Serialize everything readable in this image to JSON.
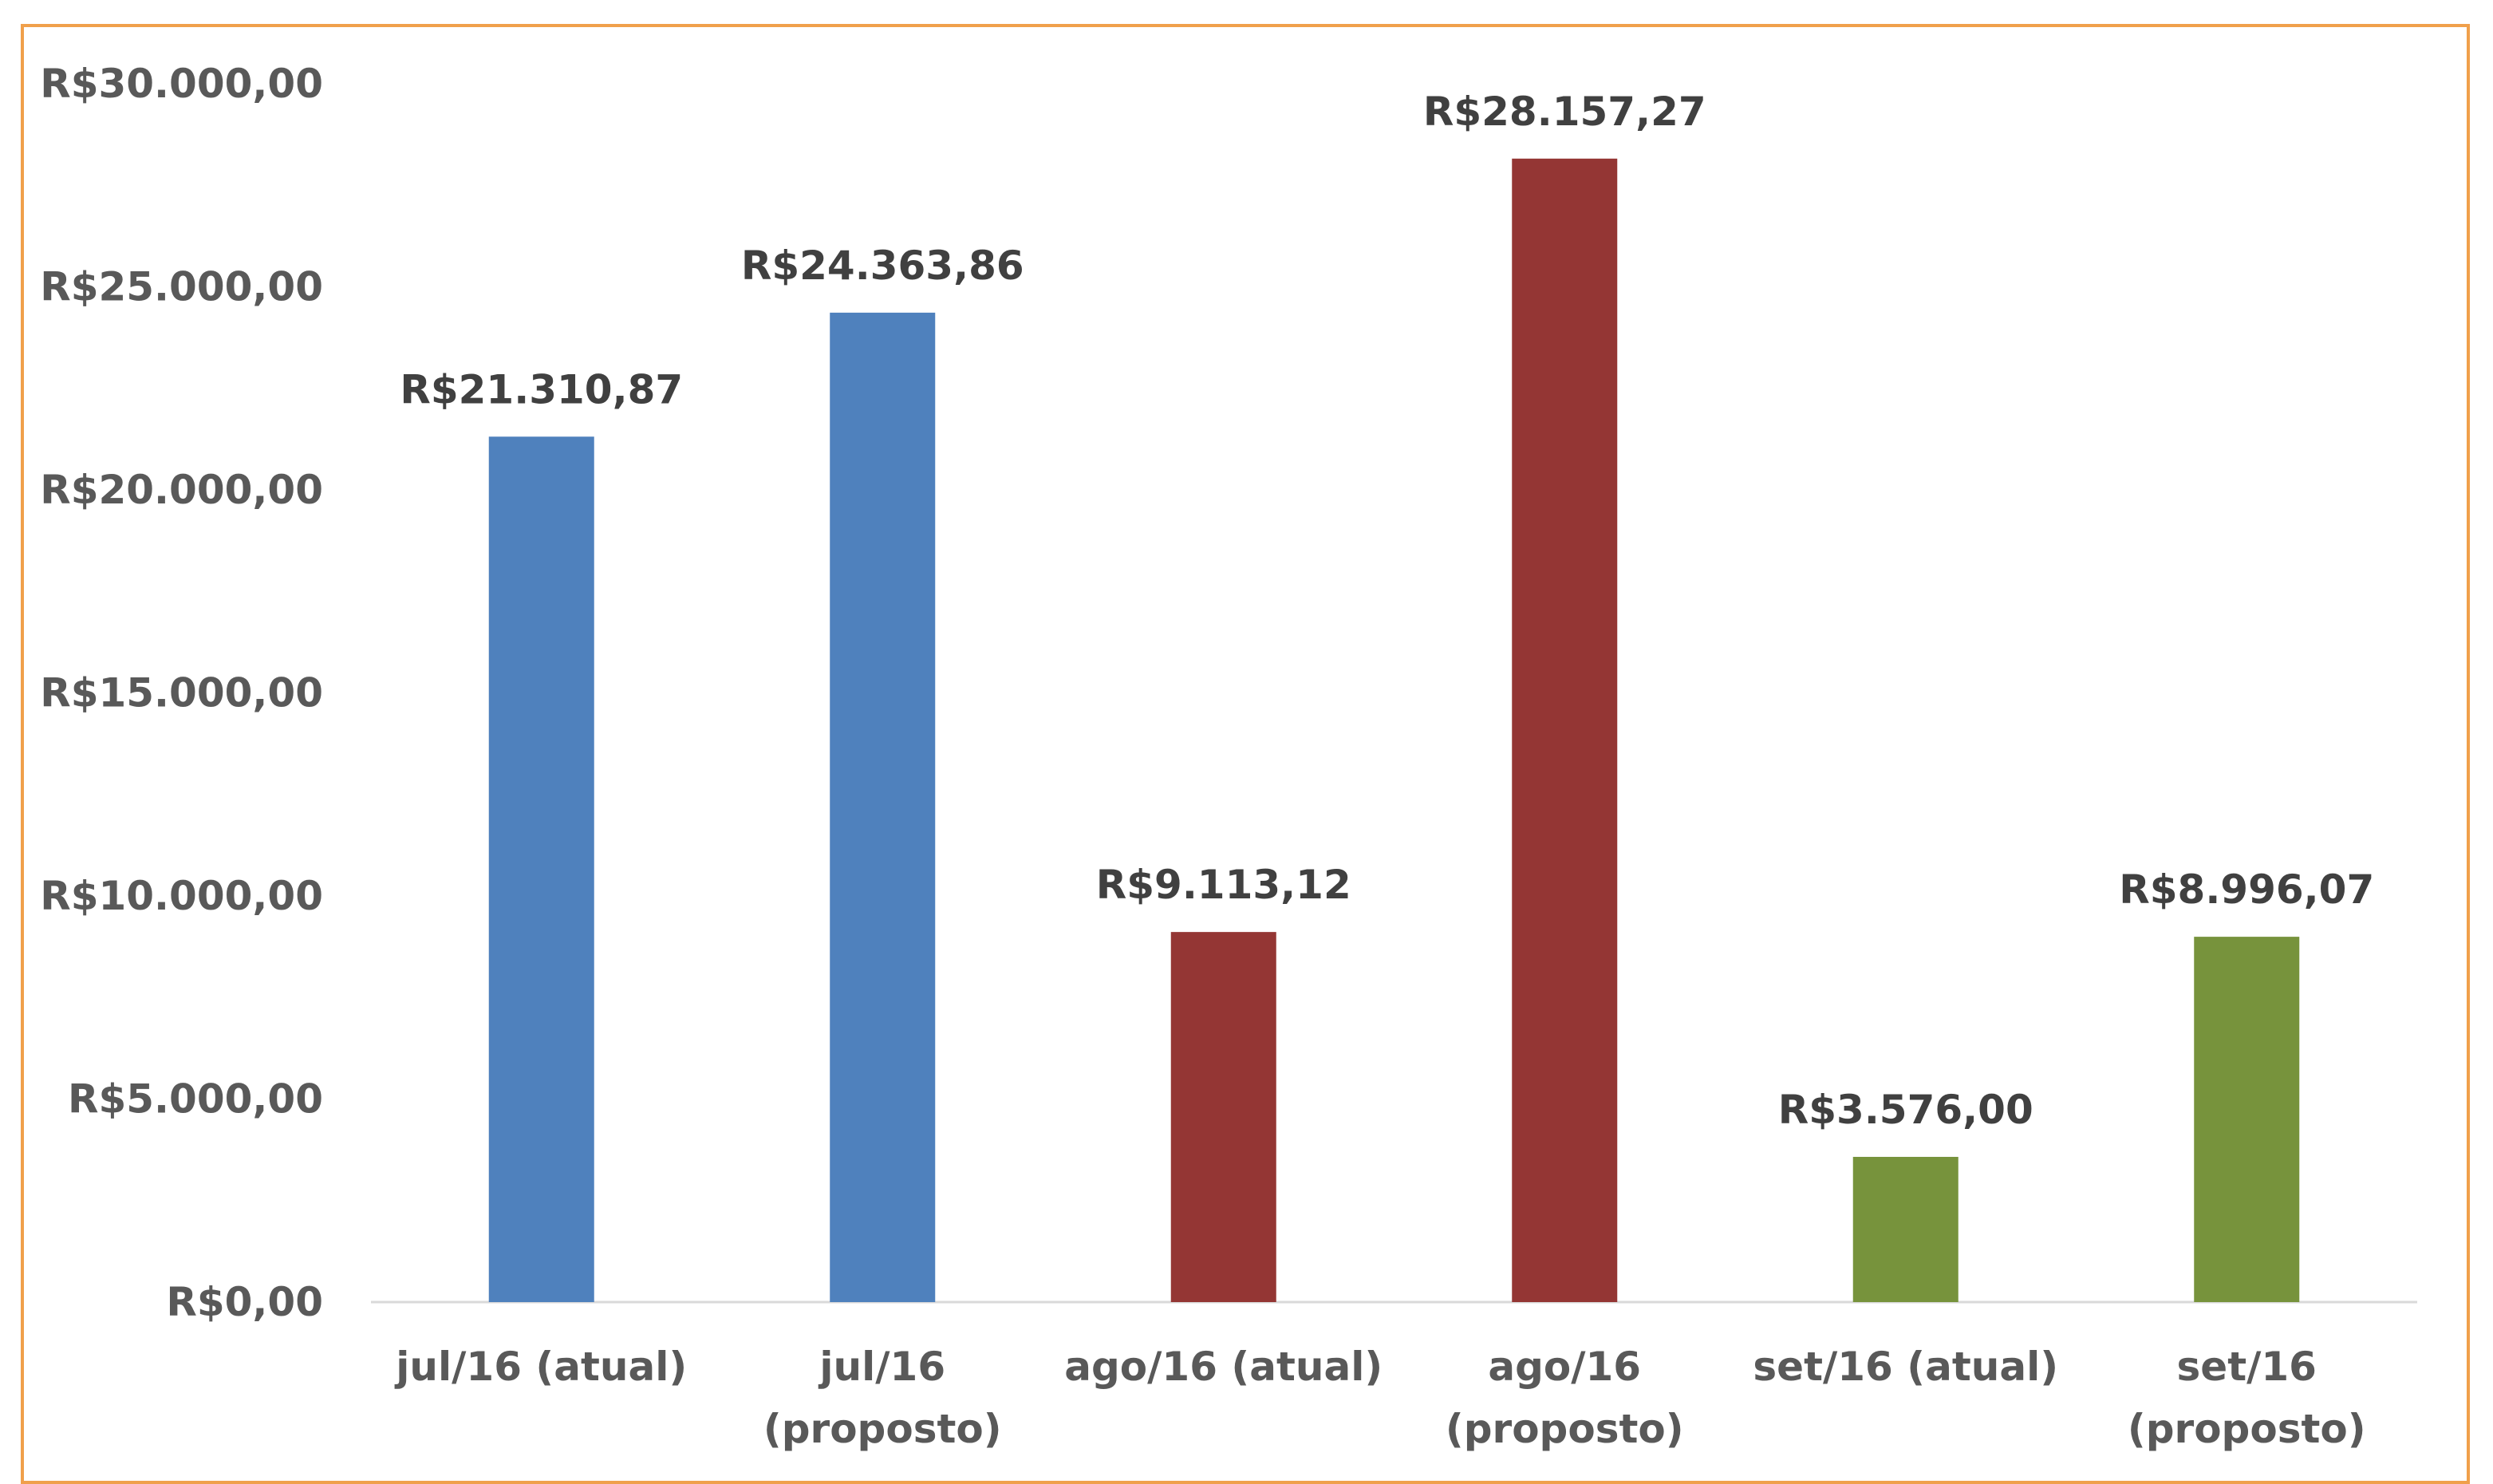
{
  "chart_data": {
    "type": "bar",
    "categories": [
      [
        "jul/16 (atual)"
      ],
      [
        "jul/16",
        "(proposto)"
      ],
      [
        "ago/16 (atual)"
      ],
      [
        "ago/16",
        "(proposto)"
      ],
      [
        "set/16 (atual)"
      ],
      [
        "set/16",
        "(proposto)"
      ]
    ],
    "values": [
      21310.87,
      24363.86,
      9113.12,
      28157.27,
      3576.0,
      8996.07
    ],
    "data_labels": [
      "R$21.310,87",
      "R$24.363,86",
      "R$9.113,12",
      "R$28.157,27",
      "R$3.576,00",
      "R$8.996,07"
    ],
    "bar_colors": [
      "#4f81bd",
      "#4f81bd",
      "#943634",
      "#943634",
      "#77933c",
      "#77933c"
    ],
    "y_ticks": [
      0,
      5000,
      10000,
      15000,
      20000,
      25000,
      30000
    ],
    "y_tick_labels": [
      "R$0,00",
      "R$5.000,00",
      "R$10.000,00",
      "R$15.000,00",
      "R$20.000,00",
      "R$25.000,00",
      "R$30.000,00"
    ],
    "ylim": [
      0,
      30000
    ],
    "title": "",
    "xlabel": "",
    "ylabel": "",
    "grid": false,
    "legend": "none"
  },
  "colors": {
    "frame_border": "#f0a04b",
    "axis_line": "#d9d9d9",
    "text": "#595959"
  }
}
